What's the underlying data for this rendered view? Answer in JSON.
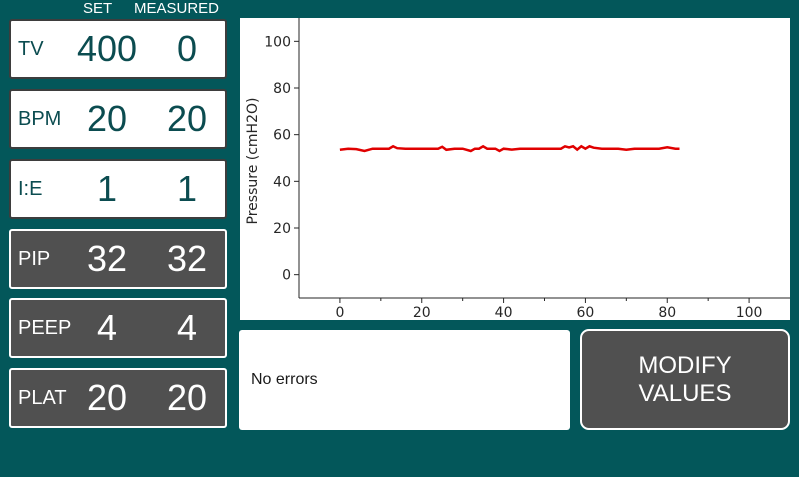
{
  "headers": {
    "set": "SET",
    "measured": "MEASURED"
  },
  "parameters": [
    {
      "label": "TV",
      "set": "400",
      "measured": "0",
      "style": "light"
    },
    {
      "label": "BPM",
      "set": "20",
      "measured": "20",
      "style": "light"
    },
    {
      "label": "I:E",
      "set": "1",
      "measured": "1",
      "style": "light"
    },
    {
      "label": "PIP",
      "set": "32",
      "measured": "32",
      "style": "dark"
    },
    {
      "label": "PEEP",
      "set": "4",
      "measured": "4",
      "style": "dark"
    },
    {
      "label": "PLAT",
      "set": "20",
      "measured": "20",
      "style": "dark"
    }
  ],
  "status": {
    "message": "No errors"
  },
  "modify_button": {
    "label": "MODIFY\nVALUES"
  },
  "colors": {
    "background": "#03575a",
    "dark_box": "#505050",
    "trace": "#e00000"
  },
  "chart_data": {
    "type": "line",
    "title": "",
    "xlabel": "",
    "ylabel": "Pressure (cmH2O)",
    "xlim": [
      -10,
      110
    ],
    "ylim": [
      -10,
      110
    ],
    "xticks": [
      0,
      20,
      40,
      60,
      80,
      100
    ],
    "yticks": [
      0,
      20,
      40,
      60,
      80,
      100
    ],
    "grid": false,
    "series": [
      {
        "color": "#e00000",
        "x": [
          0,
          2,
          4,
          6,
          8,
          10,
          12,
          13,
          14,
          16,
          18,
          20,
          22,
          24,
          25,
          26,
          28,
          30,
          32,
          33,
          34,
          35,
          36,
          38,
          39,
          40,
          42,
          44,
          46,
          48,
          50,
          52,
          54,
          55,
          56,
          57,
          58,
          59,
          60,
          61,
          62,
          64,
          66,
          68,
          70,
          72,
          74,
          76,
          78,
          80,
          82,
          83
        ],
        "y": [
          53.5,
          54,
          53.8,
          53,
          54,
          54,
          54,
          55,
          54.2,
          54,
          54,
          54,
          54,
          54,
          54.8,
          53.5,
          54,
          54,
          53,
          54,
          54,
          55,
          54,
          54,
          53,
          54,
          53.6,
          54,
          54,
          54,
          54,
          54,
          54,
          55,
          54.5,
          55,
          53.6,
          55,
          54,
          55,
          54.4,
          54,
          54,
          54,
          53.5,
          54,
          54,
          54,
          54,
          54.6,
          54,
          54
        ]
      }
    ]
  }
}
